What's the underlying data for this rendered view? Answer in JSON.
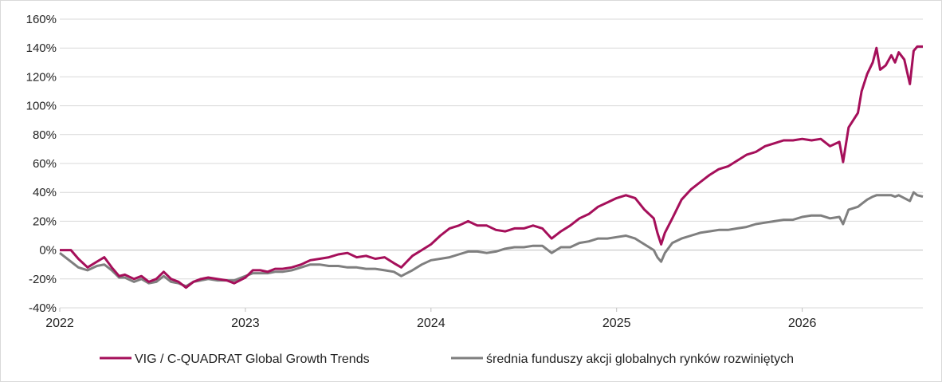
{
  "chart_data": {
    "type": "line",
    "title": "",
    "xlabel": "",
    "ylabel": "",
    "ylim": [
      -40,
      160
    ],
    "y_ticks": [
      -40,
      -20,
      0,
      20,
      40,
      60,
      80,
      100,
      120,
      140,
      160
    ],
    "y_tick_labels": [
      "-40%",
      "-20%",
      "0%",
      "20%",
      "40%",
      "60%",
      "80%",
      "100%",
      "120%",
      "140%",
      "160%"
    ],
    "x_ticks": [
      2022,
      2023,
      2024,
      2025,
      2026
    ],
    "x_tick_labels": [
      "2022",
      "2023",
      "2024",
      "2025",
      "2026"
    ],
    "xlim": [
      2022.0,
      2026.65
    ],
    "grid": true,
    "legend_position": "bottom",
    "colors": {
      "series_1": "#a50f5a",
      "series_2": "#7f7f7f"
    },
    "series": [
      {
        "name": "VIG / C-QUADRAT Global Growth Trends",
        "color": "#a50f5a",
        "x": [
          2022.0,
          2022.06,
          2022.1,
          2022.15,
          2022.2,
          2022.24,
          2022.28,
          2022.32,
          2022.35,
          2022.4,
          2022.44,
          2022.48,
          2022.52,
          2022.56,
          2022.6,
          2022.64,
          2022.68,
          2022.72,
          2022.76,
          2022.8,
          2022.85,
          2022.9,
          2022.94,
          2023.0,
          2023.04,
          2023.08,
          2023.12,
          2023.16,
          2023.2,
          2023.25,
          2023.3,
          2023.35,
          2023.4,
          2023.45,
          2023.5,
          2023.55,
          2023.6,
          2023.65,
          2023.7,
          2023.75,
          2023.8,
          2023.84,
          2023.9,
          2023.95,
          2024.0,
          2024.05,
          2024.1,
          2024.15,
          2024.2,
          2024.25,
          2024.3,
          2024.35,
          2024.4,
          2024.45,
          2024.5,
          2024.55,
          2024.6,
          2024.65,
          2024.7,
          2024.75,
          2024.8,
          2024.85,
          2024.9,
          2024.95,
          2025.0,
          2025.05,
          2025.1,
          2025.15,
          2025.2,
          2025.22,
          2025.24,
          2025.26,
          2025.3,
          2025.35,
          2025.4,
          2025.45,
          2025.5,
          2025.55,
          2025.6,
          2025.65,
          2025.7,
          2025.75,
          2025.8,
          2025.85,
          2025.9,
          2025.95,
          2026.0,
          2026.05,
          2026.1,
          2026.15,
          2026.2,
          2026.22,
          2026.25,
          2026.3,
          2026.32,
          2026.35,
          2026.38,
          2026.4,
          2026.42,
          2026.45,
          2026.48,
          2026.5,
          2026.52,
          2026.55,
          2026.58,
          2026.6,
          2026.62,
          2026.65
        ],
        "y": [
          0,
          0,
          -6,
          -12,
          -8,
          -5,
          -12,
          -18,
          -17,
          -20,
          -18,
          -22,
          -20,
          -15,
          -20,
          -22,
          -26,
          -22,
          -20,
          -19,
          -20,
          -21,
          -23,
          -19,
          -14,
          -14,
          -15,
          -13,
          -13,
          -12,
          -10,
          -7,
          -6,
          -5,
          -3,
          -2,
          -5,
          -4,
          -6,
          -5,
          -9,
          -12,
          -4,
          0,
          4,
          10,
          15,
          17,
          20,
          17,
          17,
          14,
          13,
          15,
          15,
          17,
          15,
          8,
          13,
          17,
          22,
          25,
          30,
          33,
          36,
          38,
          36,
          28,
          22,
          12,
          4,
          12,
          22,
          35,
          42,
          47,
          52,
          56,
          58,
          62,
          66,
          68,
          72,
          74,
          76,
          76,
          77,
          76,
          77,
          72,
          75,
          61,
          85,
          95,
          110,
          122,
          130,
          140,
          125,
          128,
          135,
          130,
          137,
          132,
          115,
          138,
          141,
          141
        ]
      },
      {
        "name": "średnia funduszy akcji globalnych rynków rozwiniętych",
        "color": "#7f7f7f",
        "x": [
          2022.0,
          2022.06,
          2022.1,
          2022.15,
          2022.2,
          2022.24,
          2022.28,
          2022.32,
          2022.35,
          2022.4,
          2022.44,
          2022.48,
          2022.52,
          2022.56,
          2022.6,
          2022.64,
          2022.68,
          2022.72,
          2022.76,
          2022.8,
          2022.85,
          2022.9,
          2022.94,
          2023.0,
          2023.04,
          2023.08,
          2023.12,
          2023.16,
          2023.2,
          2023.25,
          2023.3,
          2023.35,
          2023.4,
          2023.45,
          2023.5,
          2023.55,
          2023.6,
          2023.65,
          2023.7,
          2023.75,
          2023.8,
          2023.84,
          2023.9,
          2023.95,
          2024.0,
          2024.05,
          2024.1,
          2024.15,
          2024.2,
          2024.25,
          2024.3,
          2024.35,
          2024.4,
          2024.45,
          2024.5,
          2024.55,
          2024.6,
          2024.65,
          2024.7,
          2024.75,
          2024.8,
          2024.85,
          2024.9,
          2024.95,
          2025.0,
          2025.05,
          2025.1,
          2025.15,
          2025.2,
          2025.22,
          2025.24,
          2025.26,
          2025.3,
          2025.35,
          2025.4,
          2025.45,
          2025.5,
          2025.55,
          2025.6,
          2025.65,
          2025.7,
          2025.75,
          2025.8,
          2025.85,
          2025.9,
          2025.95,
          2026.0,
          2026.05,
          2026.1,
          2026.15,
          2026.2,
          2026.22,
          2026.25,
          2026.3,
          2026.32,
          2026.35,
          2026.38,
          2026.4,
          2026.42,
          2026.45,
          2026.48,
          2026.5,
          2026.52,
          2026.55,
          2026.58,
          2026.6,
          2026.62,
          2026.65
        ],
        "y": [
          -2,
          -8,
          -12,
          -14,
          -11,
          -10,
          -14,
          -19,
          -19,
          -22,
          -20,
          -23,
          -22,
          -18,
          -22,
          -23,
          -25,
          -22,
          -21,
          -20,
          -21,
          -21,
          -21,
          -18,
          -16,
          -16,
          -16,
          -15,
          -15,
          -14,
          -12,
          -10,
          -10,
          -11,
          -11,
          -12,
          -12,
          -13,
          -13,
          -14,
          -15,
          -18,
          -14,
          -10,
          -7,
          -6,
          -5,
          -3,
          -1,
          -1,
          -2,
          -1,
          1,
          2,
          2,
          3,
          3,
          -2,
          2,
          2,
          5,
          6,
          8,
          8,
          9,
          10,
          8,
          4,
          0,
          -5,
          -8,
          -2,
          5,
          8,
          10,
          12,
          13,
          14,
          14,
          15,
          16,
          18,
          19,
          20,
          21,
          21,
          23,
          24,
          24,
          22,
          23,
          18,
          28,
          30,
          32,
          35,
          37,
          38,
          38,
          38,
          38,
          37,
          38,
          36,
          34,
          40,
          38,
          37
        ]
      }
    ]
  }
}
